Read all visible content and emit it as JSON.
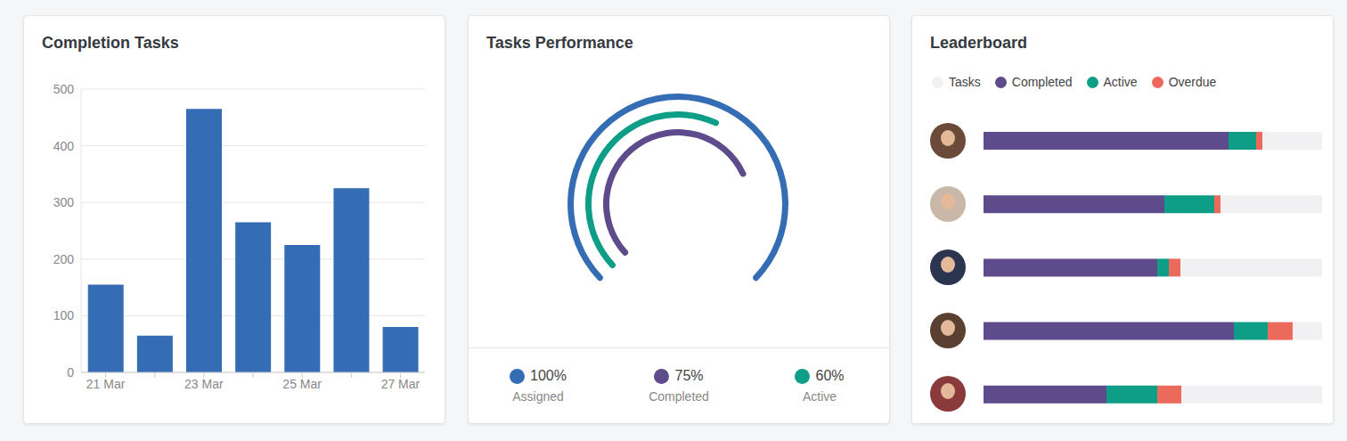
{
  "chart_data": [
    {
      "type": "bar",
      "title": "Completion Tasks",
      "categories": [
        "21 Mar",
        null,
        "23 Mar",
        null,
        "25 Mar",
        null,
        "27 Mar"
      ],
      "values": [
        155,
        65,
        465,
        265,
        225,
        325,
        80
      ],
      "color": "#346db3",
      "ylim": [
        0,
        500
      ],
      "yticks": [
        0,
        100,
        200,
        300,
        400,
        500
      ],
      "grid": true
    },
    {
      "type": "radial_bar",
      "title": "Tasks Performance",
      "categories": [
        "Assigned",
        "Completed",
        "Active"
      ],
      "values": [
        100,
        75,
        60
      ],
      "value_labels": [
        "100%",
        "75%",
        "60%"
      ],
      "colors": [
        "#346db3",
        "#5e4b8b",
        "#0e9e88"
      ],
      "ylim": [
        0,
        100
      ],
      "tick_labels": false
    },
    {
      "type": "bar",
      "title": "Leaderboard",
      "orientation": "horizontal",
      "stacked": true,
      "legend": "top",
      "tick_labels": false,
      "categories": [
        null,
        null,
        null,
        null,
        null
      ],
      "xlim": [
        0,
        380
      ],
      "series": [
        {
          "name": "Tasks",
          "color": "#f1f1f3",
          "values": [
            67,
            114,
            159,
            33,
            158
          ]
        },
        {
          "name": "Completed",
          "color": "#5e4b8b",
          "values": [
            275,
            203,
            195,
            281,
            138
          ]
        },
        {
          "name": "Active",
          "color": "#0e9e88",
          "values": [
            31,
            56,
            13,
            38,
            57
          ]
        },
        {
          "name": "Overdue",
          "color": "#ec6a5c",
          "values": [
            7,
            7,
            13,
            28,
            27
          ]
        }
      ]
    }
  ]
}
